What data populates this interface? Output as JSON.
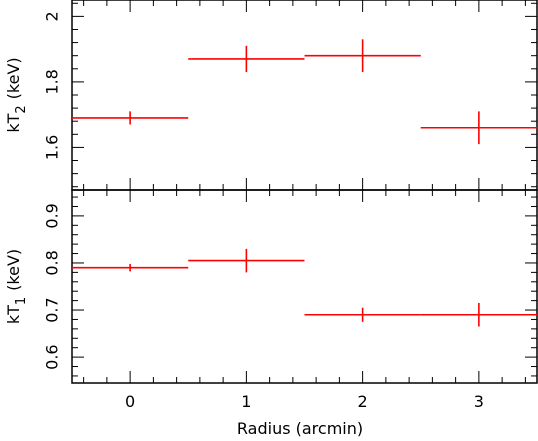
{
  "chart_data": [
    {
      "type": "scatter",
      "panel": "top",
      "xlabel": "",
      "ylabel": "kT",
      "ylabel_sub": "2",
      "ylabel_unit": "(keV)",
      "xlim": [
        -0.5,
        3.5
      ],
      "ylim": [
        1.47,
        2.05
      ],
      "yticks": [
        1.6,
        1.8,
        2
      ],
      "ytick_labels": [
        "1.6",
        "1.8",
        "2"
      ],
      "xticks": [
        0,
        1,
        2,
        3
      ],
      "grid": false,
      "color": "#ff0000",
      "points": [
        {
          "x": 0,
          "xerr": 0.5,
          "y": 1.69,
          "yerr": 0.02
        },
        {
          "x": 1,
          "xerr": 0.5,
          "y": 1.87,
          "yerr": 0.04
        },
        {
          "x": 2,
          "xerr": 0.5,
          "y": 1.88,
          "yerr": 0.05
        },
        {
          "x": 3,
          "xerr": 0.5,
          "y": 1.66,
          "yerr": 0.05
        }
      ]
    },
    {
      "type": "scatter",
      "panel": "bottom",
      "xlabel": "Radius (arcmin)",
      "ylabel": "kT",
      "ylabel_sub": "1",
      "ylabel_unit": "(keV)",
      "xlim": [
        -0.5,
        3.5
      ],
      "ylim": [
        0.545,
        0.955
      ],
      "yticks": [
        0.6,
        0.7,
        0.8,
        0.9
      ],
      "ytick_labels": [
        "0.6",
        "0.7",
        "0.8",
        "0.9"
      ],
      "xticks": [
        0,
        1,
        2,
        3
      ],
      "xtick_labels": [
        "0",
        "1",
        "2",
        "3"
      ],
      "grid": false,
      "color": "#ff0000",
      "points": [
        {
          "x": 0,
          "xerr": 0.5,
          "y": 0.79,
          "yerr": 0.008
        },
        {
          "x": 1,
          "xerr": 0.5,
          "y": 0.805,
          "yerr": 0.025
        },
        {
          "x": 2,
          "xerr": 0.5,
          "y": 0.69,
          "yerr": 0.015
        },
        {
          "x": 3,
          "xerr": 0.5,
          "y": 0.69,
          "yerr": 0.025
        }
      ]
    }
  ]
}
